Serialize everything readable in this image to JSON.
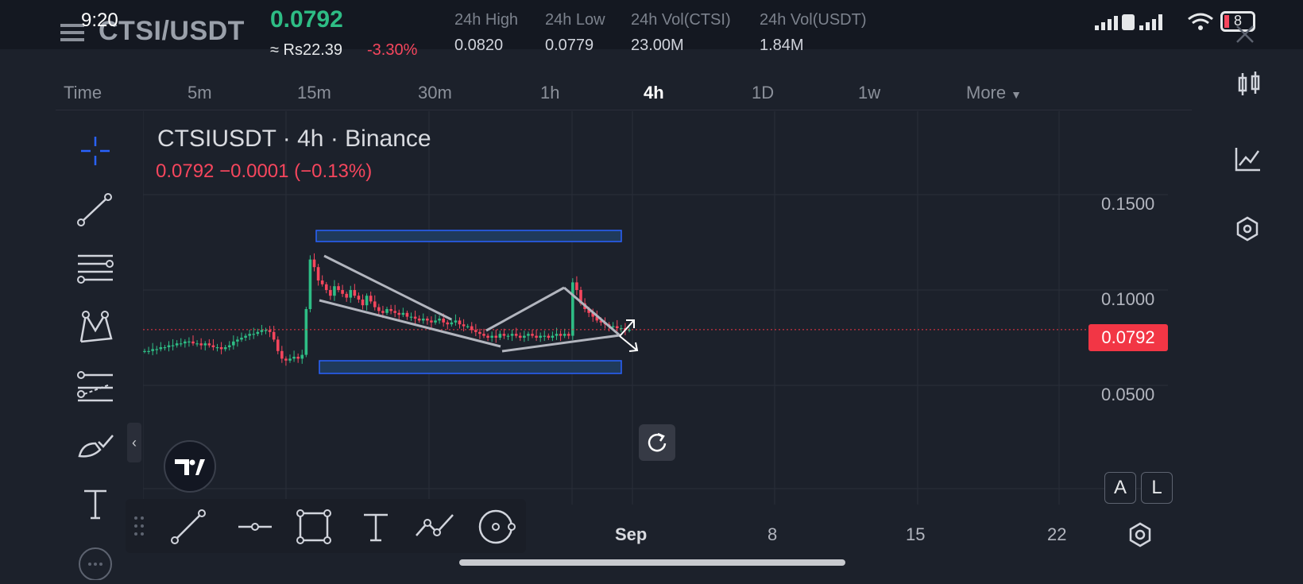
{
  "status_bar": {
    "time": "9:20",
    "battery": "8"
  },
  "header": {
    "pair": "CTSI/USDT",
    "last_price": "0.0792",
    "fiat_price": "≈ Rs22.39",
    "change_pct": "-3.30%",
    "stats": [
      {
        "label": "24h High",
        "value": "0.0820"
      },
      {
        "label": "24h Low",
        "value": "0.0779"
      },
      {
        "label": "24h Vol(CTSI)",
        "value": "23.00M"
      },
      {
        "label": "24h Vol(USDT)",
        "value": "1.84M"
      }
    ]
  },
  "timeframes": {
    "items": [
      "Time",
      "5m",
      "15m",
      "30m",
      "1h",
      "4h",
      "1D",
      "1w",
      "More"
    ],
    "active": "4h"
  },
  "chart_legend": {
    "title": "CTSIUSDT · 4h · Binance",
    "values": "0.0792  −0.0001 (−0.13%)"
  },
  "price_axis": [
    "0.1500",
    "0.1000",
    "0.0500"
  ],
  "current_price_tag": "0.0792",
  "time_axis": [
    "Sep",
    "8",
    "15",
    "22"
  ],
  "scale_buttons": {
    "auto": "A",
    "log": "L"
  },
  "colors": {
    "up": "#2ebd85",
    "down": "#f6465d",
    "accent": "#2962ff",
    "drawing": "#b2b5be"
  },
  "chart_data": {
    "type": "candlestick",
    "symbol": "CTSIUSDT",
    "interval": "4h",
    "exchange": "Binance",
    "ylim": [
      0.0,
      0.175
    ],
    "y_ticks": [
      0.05,
      0.1,
      0.15
    ],
    "x_ticks": [
      "Sep",
      "8",
      "15",
      "22"
    ],
    "last": 0.0792,
    "close_series": [
      0.068,
      0.068,
      0.069,
      0.069,
      0.07,
      0.07,
      0.071,
      0.071,
      0.072,
      0.072,
      0.073,
      0.073,
      0.072,
      0.072,
      0.071,
      0.072,
      0.071,
      0.07,
      0.07,
      0.069,
      0.07,
      0.071,
      0.073,
      0.074,
      0.075,
      0.076,
      0.077,
      0.077,
      0.078,
      0.079,
      0.079,
      0.078,
      0.074,
      0.068,
      0.064,
      0.063,
      0.064,
      0.065,
      0.064,
      0.066,
      0.09,
      0.116,
      0.112,
      0.105,
      0.103,
      0.1,
      0.097,
      0.102,
      0.1,
      0.098,
      0.096,
      0.1,
      0.097,
      0.095,
      0.092,
      0.097,
      0.094,
      0.091,
      0.089,
      0.088,
      0.09,
      0.089,
      0.088,
      0.087,
      0.088,
      0.086,
      0.086,
      0.085,
      0.084,
      0.085,
      0.084,
      0.083,
      0.084,
      0.085,
      0.083,
      0.082,
      0.083,
      0.084,
      0.082,
      0.081,
      0.081,
      0.079,
      0.078,
      0.077,
      0.076,
      0.075,
      0.076,
      0.075,
      0.077,
      0.076,
      0.076,
      0.077,
      0.076,
      0.075,
      0.076,
      0.077,
      0.076,
      0.075,
      0.076,
      0.076,
      0.075,
      0.076,
      0.077,
      0.076,
      0.077,
      0.076,
      0.104,
      0.1,
      0.093,
      0.09,
      0.088,
      0.086,
      0.084,
      0.083,
      0.082,
      0.081,
      0.081,
      0.08,
      0.08,
      0.079,
      0.0792
    ]
  }
}
